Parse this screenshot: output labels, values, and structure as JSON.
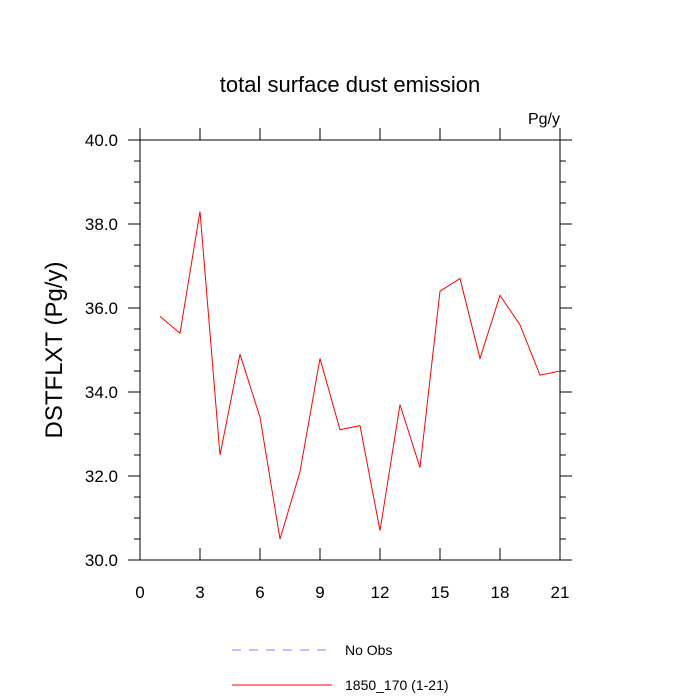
{
  "chart_data": {
    "type": "line",
    "title": "total surface dust emission",
    "units": "Pg/y",
    "ylabel": "DSTFLXT  (Pg/y)",
    "xlabel": "",
    "xlim": [
      0,
      21
    ],
    "ylim": [
      30.0,
      40.0
    ],
    "x_ticks": [
      0,
      3,
      6,
      9,
      12,
      15,
      18,
      21
    ],
    "x_tick_labels": [
      "0",
      "3",
      "6",
      "9",
      "12",
      "15",
      "18",
      "21"
    ],
    "y_ticks": [
      30.0,
      32.0,
      34.0,
      36.0,
      38.0,
      40.0
    ],
    "y_tick_labels": [
      "30.0",
      "32.0",
      "34.0",
      "36.0",
      "38.0",
      "40.0"
    ],
    "grid": false,
    "legend_position": "bottom",
    "series": [
      {
        "name": "No Obs",
        "color": "#8080ff",
        "dash": "dashed",
        "x": [],
        "values": []
      },
      {
        "name": "1850_170 (1-21)",
        "color": "#ff0000",
        "dash": "solid",
        "x": [
          1,
          2,
          3,
          4,
          5,
          6,
          7,
          8,
          9,
          10,
          11,
          12,
          13,
          14,
          15,
          16,
          17,
          18,
          19,
          20,
          21
        ],
        "values": [
          35.8,
          35.4,
          38.3,
          32.5,
          34.9,
          33.4,
          30.5,
          32.1,
          34.8,
          33.1,
          33.2,
          30.7,
          33.7,
          32.2,
          36.4,
          36.7,
          34.8,
          36.3,
          35.6,
          34.4,
          34.5
        ]
      }
    ]
  }
}
